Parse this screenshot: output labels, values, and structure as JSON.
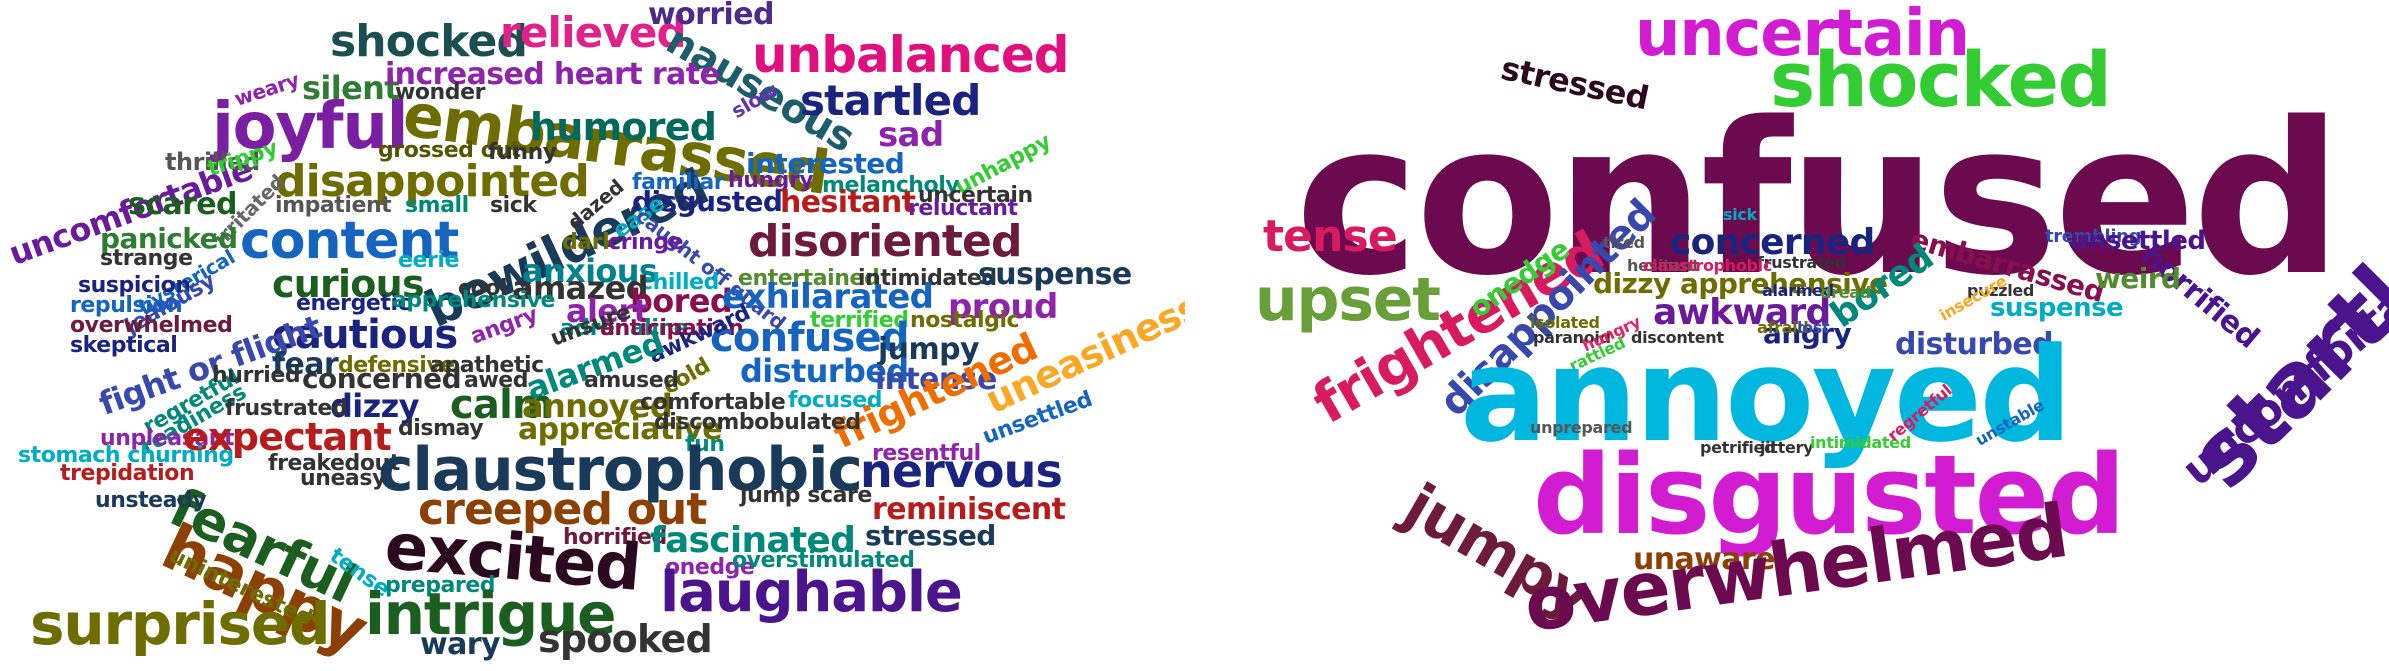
{
  "left_cloud": {
    "words": [
      {
        "text": "shocked",
        "color": "#1b4f4f"
      },
      {
        "text": "relieved",
        "color": "#e0218a"
      },
      {
        "text": "worried",
        "color": "#4b2a8a"
      },
      {
        "text": "nauseous",
        "color": "#1d5d6b"
      },
      {
        "text": "unbalanced",
        "color": "#e0117f"
      },
      {
        "text": "silent",
        "color": "#2e7d32"
      },
      {
        "text": "increased heart rate",
        "color": "#8e24aa"
      },
      {
        "text": "startled",
        "color": "#1a237e"
      },
      {
        "text": "weary",
        "color": "#8e24aa"
      },
      {
        "text": "wonder",
        "color": "#333333"
      },
      {
        "text": "joyful",
        "color": "#7b1fa2"
      },
      {
        "text": "embarrassed",
        "color": "#6d6d00"
      },
      {
        "text": "humored",
        "color": "#00695c"
      },
      {
        "text": "slow",
        "color": "#5e35b1"
      },
      {
        "text": "sad",
        "color": "#8e24aa"
      },
      {
        "text": "uncomfortable",
        "color": "#6a1b9a"
      },
      {
        "text": "thrilled",
        "color": "#555555"
      },
      {
        "text": "trippy",
        "color": "#33cc33"
      },
      {
        "text": "grossed out",
        "color": "#555500"
      },
      {
        "text": "funny",
        "color": "#333333"
      },
      {
        "text": "interested",
        "color": "#1565c0"
      },
      {
        "text": "unhappy",
        "color": "#33cc33"
      },
      {
        "text": "disappointed",
        "color": "#6d6d00"
      },
      {
        "text": "hungry",
        "color": "#6a1b9a"
      },
      {
        "text": "melancholy",
        "color": "#00897b"
      },
      {
        "text": "uncertain",
        "color": "#333333"
      },
      {
        "text": "irritated",
        "color": "#666666"
      },
      {
        "text": "scared",
        "color": "#1b5e20"
      },
      {
        "text": "impatient",
        "color": "#555555"
      },
      {
        "text": "small",
        "color": "#00897b"
      },
      {
        "text": "sick",
        "color": "#333333"
      },
      {
        "text": "bewildered",
        "color": "#1a3a5a"
      },
      {
        "text": "familiar",
        "color": "#1565c0"
      },
      {
        "text": "disgusted",
        "color": "#1a237e"
      },
      {
        "text": "hesitant",
        "color": "#b71c1c"
      },
      {
        "text": "reluctant",
        "color": "#6a1b9a"
      },
      {
        "text": "panicked",
        "color": "#2e7d32"
      },
      {
        "text": "content",
        "color": "#1565c0"
      },
      {
        "text": "dazed",
        "color": "#333333"
      },
      {
        "text": "ease",
        "color": "#00acc1"
      },
      {
        "text": "caught off guard",
        "color": "#3949ab"
      },
      {
        "text": "disoriented",
        "color": "#6d1b3a"
      },
      {
        "text": "strange",
        "color": "#333333"
      },
      {
        "text": "hysterical",
        "color": "#1565c0"
      },
      {
        "text": "dark",
        "color": "#6d6d00"
      },
      {
        "text": "cringe",
        "color": "#6a1b9a"
      },
      {
        "text": "suspicion",
        "color": "#1a237e"
      },
      {
        "text": "jealousy",
        "color": "#3949ab"
      },
      {
        "text": "eerie",
        "color": "#00acc1"
      },
      {
        "text": "curious",
        "color": "#1b5e20"
      },
      {
        "text": "anxious",
        "color": "#00838f"
      },
      {
        "text": "chilled",
        "color": "#00acc1"
      },
      {
        "text": "entertained",
        "color": "#558b2f"
      },
      {
        "text": "intimidated",
        "color": "#333333"
      },
      {
        "text": "suspense",
        "color": "#1a3a5a"
      },
      {
        "text": "repulsion",
        "color": "#1565c0"
      },
      {
        "text": "energetic",
        "color": "#1a237e"
      },
      {
        "text": "cool",
        "color": "#333333"
      },
      {
        "text": "amazed",
        "color": "#333333"
      },
      {
        "text": "bored",
        "color": "#880e4f"
      },
      {
        "text": "exhilarated",
        "color": "#1565c0"
      },
      {
        "text": "proud",
        "color": "#8e24aa"
      },
      {
        "text": "uneasiness",
        "color": "#f9a825"
      },
      {
        "text": "overwhelmed",
        "color": "#6d1b3a"
      },
      {
        "text": "apprehensive",
        "color": "#00897b"
      },
      {
        "text": "alert",
        "color": "#8e24aa"
      },
      {
        "text": "terrified",
        "color": "#33cc33"
      },
      {
        "text": "nostalgic",
        "color": "#6d6d00"
      },
      {
        "text": "skeptical",
        "color": "#1a237e"
      },
      {
        "text": "cautious",
        "color": "#1a237e"
      },
      {
        "text": "angry",
        "color": "#8e24aa"
      },
      {
        "text": "adrenaline",
        "color": "#00897b"
      },
      {
        "text": "anticipation",
        "color": "#880e4f"
      },
      {
        "text": "confused",
        "color": "#1565c0"
      },
      {
        "text": "fight or flight",
        "color": "#3949ab"
      },
      {
        "text": "unsure",
        "color": "#333333"
      },
      {
        "text": "awkward",
        "color": "#1a237e"
      },
      {
        "text": "jumpy",
        "color": "#1a3a5a"
      },
      {
        "text": "regretful",
        "color": "#00897b"
      },
      {
        "text": "fear",
        "color": "#1a3a5a"
      },
      {
        "text": "defensive",
        "color": "#6d6d00"
      },
      {
        "text": "apathetic",
        "color": "#333333"
      },
      {
        "text": "alarmed",
        "color": "#00897b"
      },
      {
        "text": "cold",
        "color": "#6d6d00"
      },
      {
        "text": "disturbed",
        "color": "#1565c0"
      },
      {
        "text": "hurried",
        "color": "#333333"
      },
      {
        "text": "concerned",
        "color": "#333333"
      },
      {
        "text": "awed",
        "color": "#333333"
      },
      {
        "text": "amused",
        "color": "#333333"
      },
      {
        "text": "intense",
        "color": "#3949ab"
      },
      {
        "text": "readiness",
        "color": "#00897b"
      },
      {
        "text": "dizzy",
        "color": "#1a237e"
      },
      {
        "text": "calm",
        "color": "#1b5e20"
      },
      {
        "text": "annoyed",
        "color": "#6d6d00"
      },
      {
        "text": "comfortable",
        "color": "#333333"
      },
      {
        "text": "focused",
        "color": "#00acc1"
      },
      {
        "text": "frightened",
        "color": "#ef6c00"
      },
      {
        "text": "frustrated",
        "color": "#333333"
      },
      {
        "text": "dismay",
        "color": "#333333"
      },
      {
        "text": "appreciative",
        "color": "#6d6d00"
      },
      {
        "text": "discombobulated",
        "color": "#333333"
      },
      {
        "text": "unsettled",
        "color": "#1565c0"
      },
      {
        "text": "unpleasant",
        "color": "#8e24aa"
      },
      {
        "text": "expectant",
        "color": "#b71c1c"
      },
      {
        "text": "fun",
        "color": "#00897b"
      },
      {
        "text": "stomach churning",
        "color": "#00acc1"
      },
      {
        "text": "resentful",
        "color": "#8e24aa"
      },
      {
        "text": "freakedout",
        "color": "#333333"
      },
      {
        "text": "trepidation",
        "color": "#b71c1c"
      },
      {
        "text": "uneasy",
        "color": "#333333"
      },
      {
        "text": "claustrophobic",
        "color": "#1a3a5a"
      },
      {
        "text": "nervous",
        "color": "#1a237e"
      },
      {
        "text": "fearful",
        "color": "#1b5e20"
      },
      {
        "text": "unsteady",
        "color": "#1a3a5a"
      },
      {
        "text": "jump scare",
        "color": "#333333"
      },
      {
        "text": "creeped out",
        "color": "#8d4004"
      },
      {
        "text": "reminiscent",
        "color": "#b71c1c"
      },
      {
        "text": "happy",
        "color": "#8d4004"
      },
      {
        "text": "horrified",
        "color": "#6d1b3a"
      },
      {
        "text": "fascinated",
        "color": "#00897b"
      },
      {
        "text": "stressed",
        "color": "#1a3a5a"
      },
      {
        "text": "tense",
        "color": "#00acc1"
      },
      {
        "text": "excited",
        "color": "#2b0a1f"
      },
      {
        "text": "onedge",
        "color": "#8e24aa"
      },
      {
        "text": "overstimulated",
        "color": "#00897b"
      },
      {
        "text": "uninterested",
        "color": "#6d6d00"
      },
      {
        "text": "laughable",
        "color": "#4a148c"
      },
      {
        "text": "prepared",
        "color": "#00897b"
      },
      {
        "text": "surprised",
        "color": "#6d6d00"
      },
      {
        "text": "intrigue",
        "color": "#1b5e20"
      },
      {
        "text": "wary",
        "color": "#1a3a5a"
      },
      {
        "text": "spooked",
        "color": "#333333"
      }
    ]
  },
  "right_cloud": {
    "words": [
      {
        "text": "uncertain",
        "color": "#d11cd1"
      },
      {
        "text": "stressed",
        "color": "#2b0a1f"
      },
      {
        "text": "shocked",
        "color": "#33cc33"
      },
      {
        "text": "confused",
        "color": "#6b0a4e"
      },
      {
        "text": "tense",
        "color": "#d81b60"
      },
      {
        "text": "frightened",
        "color": "#d81b60"
      },
      {
        "text": "onedge",
        "color": "#33cc33"
      },
      {
        "text": "concerned",
        "color": "#1a237e"
      },
      {
        "text": "sick",
        "color": "#00acc1"
      },
      {
        "text": "embarrassed",
        "color": "#880e4f"
      },
      {
        "text": "trembling",
        "color": "#3949ab"
      },
      {
        "text": "unsettled",
        "color": "#4a148c"
      },
      {
        "text": "upset",
        "color": "#689f38"
      },
      {
        "text": "disappointed",
        "color": "#3949ab"
      },
      {
        "text": "tired",
        "color": "#555555"
      },
      {
        "text": "hesitant",
        "color": "#555555"
      },
      {
        "text": "frustrated",
        "color": "#333333"
      },
      {
        "text": "horrified",
        "color": "#4a148c"
      },
      {
        "text": "weird",
        "color": "#558b2f"
      },
      {
        "text": "dizzy",
        "color": "#6d6d00"
      },
      {
        "text": "apprehensive",
        "color": "#6d6d00"
      },
      {
        "text": "claustrophobic",
        "color": "#d81b60"
      },
      {
        "text": "bored",
        "color": "#00897b"
      },
      {
        "text": "puzzled",
        "color": "#333333"
      },
      {
        "text": "suspense",
        "color": "#00acc1"
      },
      {
        "text": "isolated",
        "color": "#6d6d00"
      },
      {
        "text": "awkward",
        "color": "#6a1b9a"
      },
      {
        "text": "alarmed",
        "color": "#1a237e"
      },
      {
        "text": "dread",
        "color": "#558b2f"
      },
      {
        "text": "paranoid",
        "color": "#333333"
      },
      {
        "text": "hungry",
        "color": "#e91e63"
      },
      {
        "text": "discontent",
        "color": "#333333"
      },
      {
        "text": "angry",
        "color": "#1a237e"
      },
      {
        "text": "afraid",
        "color": "#6d6d00"
      },
      {
        "text": "lost",
        "color": "#3949ab"
      },
      {
        "text": "insecure",
        "color": "#f9a825"
      },
      {
        "text": "startled",
        "color": "#4a148c"
      },
      {
        "text": "disturbed",
        "color": "#3949ab"
      },
      {
        "text": "rattled",
        "color": "#33cc33"
      },
      {
        "text": "uncomfortable",
        "color": "#4a148c"
      },
      {
        "text": "annoyed",
        "color": "#00b7e0"
      },
      {
        "text": "jumpy",
        "color": "#6d1b3a"
      },
      {
        "text": "unprepared",
        "color": "#555555"
      },
      {
        "text": "petrified",
        "color": "#333333"
      },
      {
        "text": "jittery",
        "color": "#333333"
      },
      {
        "text": "intimidated",
        "color": "#33cc33"
      },
      {
        "text": "regretful",
        "color": "#d81b60"
      },
      {
        "text": "unstable",
        "color": "#1565c0"
      },
      {
        "text": "disgusted",
        "color": "#d11cd1"
      },
      {
        "text": "unaware",
        "color": "#8d4004"
      },
      {
        "text": "overwhelmed",
        "color": "#6b0a4e"
      }
    ]
  }
}
